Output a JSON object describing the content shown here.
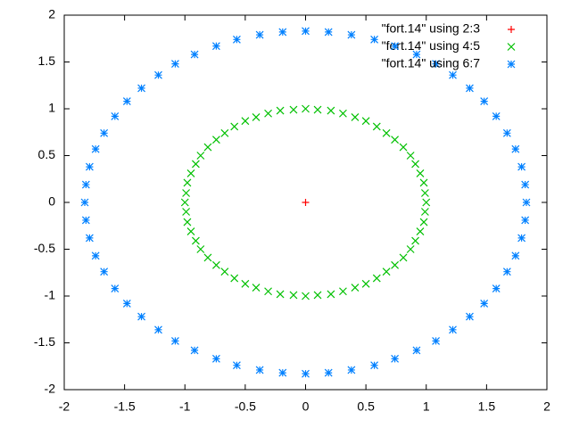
{
  "chart_data": {
    "type": "scatter",
    "xlim": [
      -2,
      2
    ],
    "ylim": [
      -2,
      2
    ],
    "xticks": [
      -2,
      -1.5,
      -1,
      -0.5,
      0,
      0.5,
      1,
      1.5,
      2
    ],
    "yticks": [
      -2,
      -1.5,
      -1,
      -0.5,
      0,
      0.5,
      1,
      1.5,
      2
    ],
    "legend": "top-right",
    "series": [
      {
        "name": "\"fort.14\" using 2:3",
        "color": "#ff0000",
        "marker": "plus",
        "x": [
          0
        ],
        "values": [
          0
        ]
      },
      {
        "name": "\"fort.14\" using 4:5",
        "color": "#00c000",
        "marker": "cross",
        "x": [
          1,
          0.99,
          0.98,
          0.95,
          0.91,
          0.87,
          0.81,
          0.74,
          0.67,
          0.59,
          0.5,
          0.41,
          0.31,
          0.21,
          0.1,
          0,
          -0.1,
          -0.21,
          -0.31,
          -0.41,
          -0.5,
          -0.59,
          -0.67,
          -0.74,
          -0.81,
          -0.87,
          -0.91,
          -0.95,
          -0.98,
          -0.99,
          -1,
          -0.99,
          -0.98,
          -0.95,
          -0.91,
          -0.87,
          -0.81,
          -0.74,
          -0.67,
          -0.59,
          -0.5,
          -0.41,
          -0.31,
          -0.21,
          -0.1,
          0,
          0.1,
          0.21,
          0.31,
          0.41,
          0.5,
          0.59,
          0.67,
          0.74,
          0.81,
          0.87,
          0.91,
          0.95,
          0.98,
          0.99
        ],
        "values": [
          0,
          0.1,
          0.21,
          0.31,
          0.41,
          0.5,
          0.59,
          0.67,
          0.74,
          0.81,
          0.87,
          0.91,
          0.95,
          0.98,
          0.99,
          1,
          0.99,
          0.98,
          0.95,
          0.91,
          0.87,
          0.81,
          0.74,
          0.67,
          0.59,
          0.5,
          0.41,
          0.31,
          0.21,
          0.1,
          0,
          -0.1,
          -0.21,
          -0.31,
          -0.41,
          -0.5,
          -0.59,
          -0.67,
          -0.74,
          -0.81,
          -0.87,
          -0.91,
          -0.95,
          -0.98,
          -0.99,
          -1,
          -0.99,
          -0.98,
          -0.95,
          -0.91,
          -0.87,
          -0.81,
          -0.74,
          -0.67,
          -0.59,
          -0.5,
          -0.41,
          -0.31,
          -0.21,
          -0.1
        ]
      },
      {
        "name": "\"fort.14\" using 6:7",
        "color": "#0080ff",
        "marker": "star",
        "x": [
          1.83,
          1.82,
          1.79,
          1.74,
          1.67,
          1.58,
          1.48,
          1.36,
          1.22,
          1.08,
          0.92,
          0.74,
          0.57,
          0.38,
          0.19,
          0,
          -0.19,
          -0.38,
          -0.57,
          -0.74,
          -0.92,
          -1.08,
          -1.22,
          -1.36,
          -1.48,
          -1.58,
          -1.67,
          -1.74,
          -1.79,
          -1.82,
          -1.83,
          -1.82,
          -1.79,
          -1.74,
          -1.67,
          -1.58,
          -1.48,
          -1.36,
          -1.22,
          -1.08,
          -0.92,
          -0.74,
          -0.57,
          -0.38,
          -0.19,
          0,
          0.19,
          0.38,
          0.57,
          0.74,
          0.92,
          1.08,
          1.22,
          1.36,
          1.48,
          1.58,
          1.67,
          1.74,
          1.79,
          1.82
        ],
        "values": [
          0,
          0.19,
          0.38,
          0.57,
          0.74,
          0.92,
          1.08,
          1.22,
          1.36,
          1.48,
          1.58,
          1.67,
          1.74,
          1.79,
          1.82,
          1.83,
          1.82,
          1.79,
          1.74,
          1.67,
          1.58,
          1.48,
          1.36,
          1.22,
          1.08,
          0.92,
          0.74,
          0.57,
          0.38,
          0.19,
          0,
          -0.19,
          -0.38,
          -0.57,
          -0.74,
          -0.92,
          -1.08,
          -1.22,
          -1.36,
          -1.48,
          -1.58,
          -1.67,
          -1.74,
          -1.79,
          -1.82,
          -1.83,
          -1.82,
          -1.79,
          -1.74,
          -1.67,
          -1.58,
          -1.48,
          -1.36,
          -1.22,
          -1.08,
          -0.92,
          -0.74,
          -0.57,
          -0.38,
          -0.19
        ]
      }
    ]
  }
}
